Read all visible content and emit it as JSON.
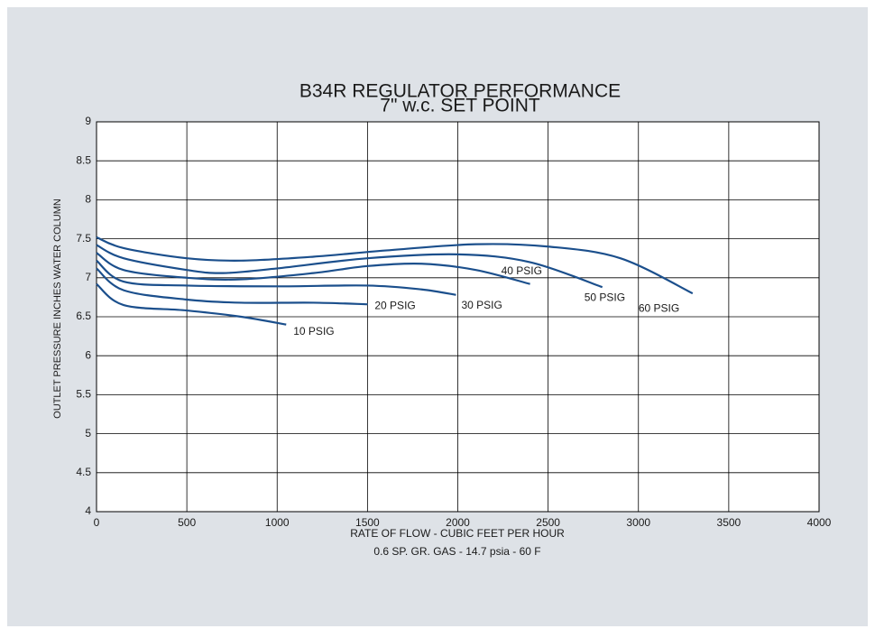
{
  "chart_data": {
    "type": "line",
    "title": "B34R REGULATOR PERFORMANCE",
    "subtitle": "7\" w.c. SET POINT",
    "x_label": "RATE OF FLOW - CUBIC FEET PER HOUR",
    "x_sublabel": "0.6 SP. GR. GAS - 14.7 psia - 60 F",
    "y_label": "OUTLET PRESSURE INCHES WATER COLUMN",
    "xlim": [
      0,
      4000
    ],
    "xticks": [
      0,
      500,
      1000,
      1500,
      2000,
      2500,
      3000,
      3500,
      4000
    ],
    "ylim": [
      4,
      9
    ],
    "yticks": [
      4,
      4.5,
      5,
      5.5,
      6,
      6.5,
      7,
      7.5,
      8,
      8.5,
      9
    ],
    "grid": true,
    "series": [
      {
        "name": "10 PSIG",
        "color": "#1b4f8c",
        "x": [
          0,
          150,
          500,
          800,
          1050
        ],
        "values": [
          6.92,
          6.65,
          6.58,
          6.5,
          6.4
        ]
      },
      {
        "name": "20 PSIG",
        "color": "#1b4f8c",
        "x": [
          0,
          150,
          500,
          800,
          1200,
          1500
        ],
        "values": [
          7.12,
          6.84,
          6.72,
          6.68,
          6.68,
          6.66
        ]
      },
      {
        "name": "30 PSIG",
        "color": "#1b4f8c",
        "x": [
          0,
          150,
          500,
          1000,
          1500,
          1800,
          1990
        ],
        "values": [
          7.22,
          6.95,
          6.9,
          6.89,
          6.9,
          6.85,
          6.78
        ]
      },
      {
        "name": "40 PSIG",
        "color": "#1b4f8c",
        "x": [
          0,
          150,
          500,
          800,
          1200,
          1500,
          1800,
          2100,
          2400
        ],
        "values": [
          7.32,
          7.1,
          7.0,
          6.98,
          7.06,
          7.15,
          7.18,
          7.1,
          6.92
        ]
      },
      {
        "name": "50 PSIG",
        "color": "#1b4f8c",
        "x": [
          0,
          150,
          500,
          700,
          1000,
          1500,
          2000,
          2400,
          2800
        ],
        "values": [
          7.42,
          7.25,
          7.1,
          7.06,
          7.12,
          7.25,
          7.3,
          7.2,
          6.88
        ]
      },
      {
        "name": "60 PSIG",
        "color": "#1b4f8c",
        "x": [
          0,
          150,
          500,
          800,
          1200,
          1600,
          2100,
          2500,
          2900,
          3300
        ],
        "values": [
          7.52,
          7.38,
          7.25,
          7.22,
          7.27,
          7.35,
          7.43,
          7.4,
          7.25,
          6.8
        ]
      }
    ]
  }
}
